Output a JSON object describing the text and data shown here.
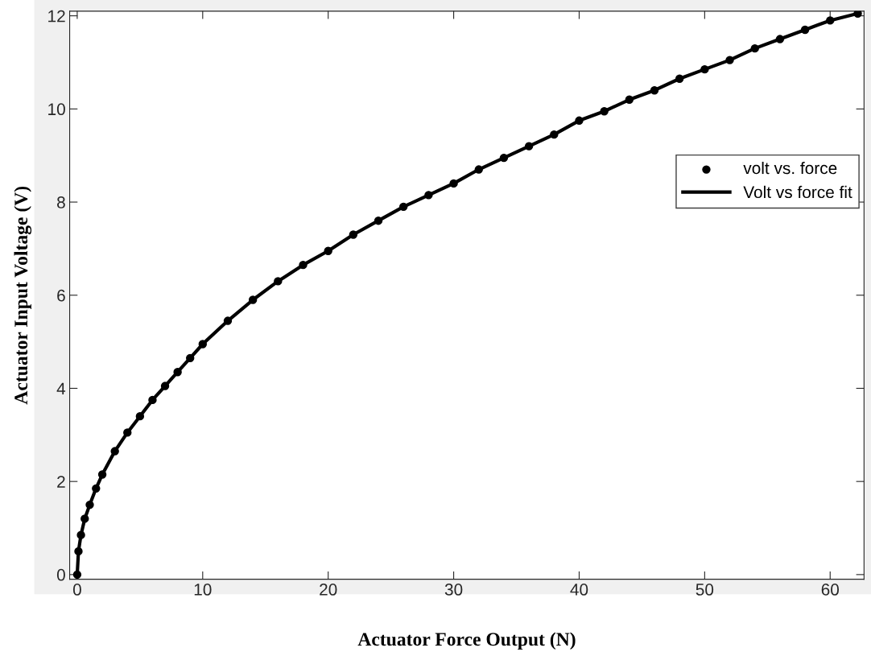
{
  "chart_data": {
    "type": "scatter",
    "xlabel": "Actuator Force Output (N)",
    "ylabel": "Actuator Input Voltage (V)",
    "xlim": [
      -0.6,
      62.7
    ],
    "ylim": [
      -0.1,
      12.1
    ],
    "xticks": [
      0,
      10,
      20,
      30,
      40,
      50,
      60
    ],
    "yticks": [
      0,
      2,
      4,
      6,
      8,
      10,
      12
    ],
    "grid": false,
    "legend": "right",
    "series": [
      {
        "name": "volt vs. force",
        "marker": "circle",
        "color": "#000000",
        "x": [
          0,
          0.1,
          0.3,
          0.6,
          1,
          1.5,
          2,
          3,
          4,
          5,
          6,
          7,
          8,
          9,
          10,
          12,
          14,
          16,
          18,
          20,
          22,
          24,
          26,
          28,
          30,
          32,
          34,
          36,
          38,
          40,
          42,
          44,
          46,
          48,
          50,
          52,
          54,
          56,
          58,
          60,
          62.2
        ],
        "values": [
          0,
          0.5,
          0.85,
          1.2,
          1.5,
          1.85,
          2.15,
          2.65,
          3.05,
          3.4,
          3.75,
          4.05,
          4.35,
          4.65,
          4.95,
          5.45,
          5.9,
          6.3,
          6.65,
          6.95,
          7.3,
          7.6,
          7.9,
          8.15,
          8.4,
          8.7,
          8.95,
          9.2,
          9.45,
          9.75,
          9.95,
          10.2,
          10.4,
          10.65,
          10.85,
          11.05,
          11.3,
          11.5,
          11.7,
          11.9,
          12.05
        ]
      },
      {
        "name": "Volt vs force fit",
        "type": "line",
        "line_style": "solid",
        "color": "#000000",
        "x": [
          0,
          0.1,
          0.3,
          0.6,
          1,
          1.5,
          2,
          3,
          4,
          5,
          6,
          7,
          8,
          9,
          10,
          12,
          14,
          16,
          18,
          20,
          22,
          24,
          26,
          28,
          30,
          32,
          34,
          36,
          38,
          40,
          42,
          44,
          46,
          48,
          50,
          52,
          54,
          56,
          58,
          60,
          62.2
        ],
        "values": [
          0,
          0.5,
          0.85,
          1.2,
          1.5,
          1.85,
          2.15,
          2.65,
          3.05,
          3.4,
          3.75,
          4.05,
          4.35,
          4.65,
          4.95,
          5.45,
          5.9,
          6.3,
          6.65,
          6.95,
          7.3,
          7.6,
          7.9,
          8.15,
          8.4,
          8.7,
          8.95,
          9.2,
          9.45,
          9.75,
          9.95,
          10.2,
          10.4,
          10.65,
          10.85,
          11.05,
          11.3,
          11.5,
          11.7,
          11.9,
          12.05
        ]
      }
    ]
  }
}
